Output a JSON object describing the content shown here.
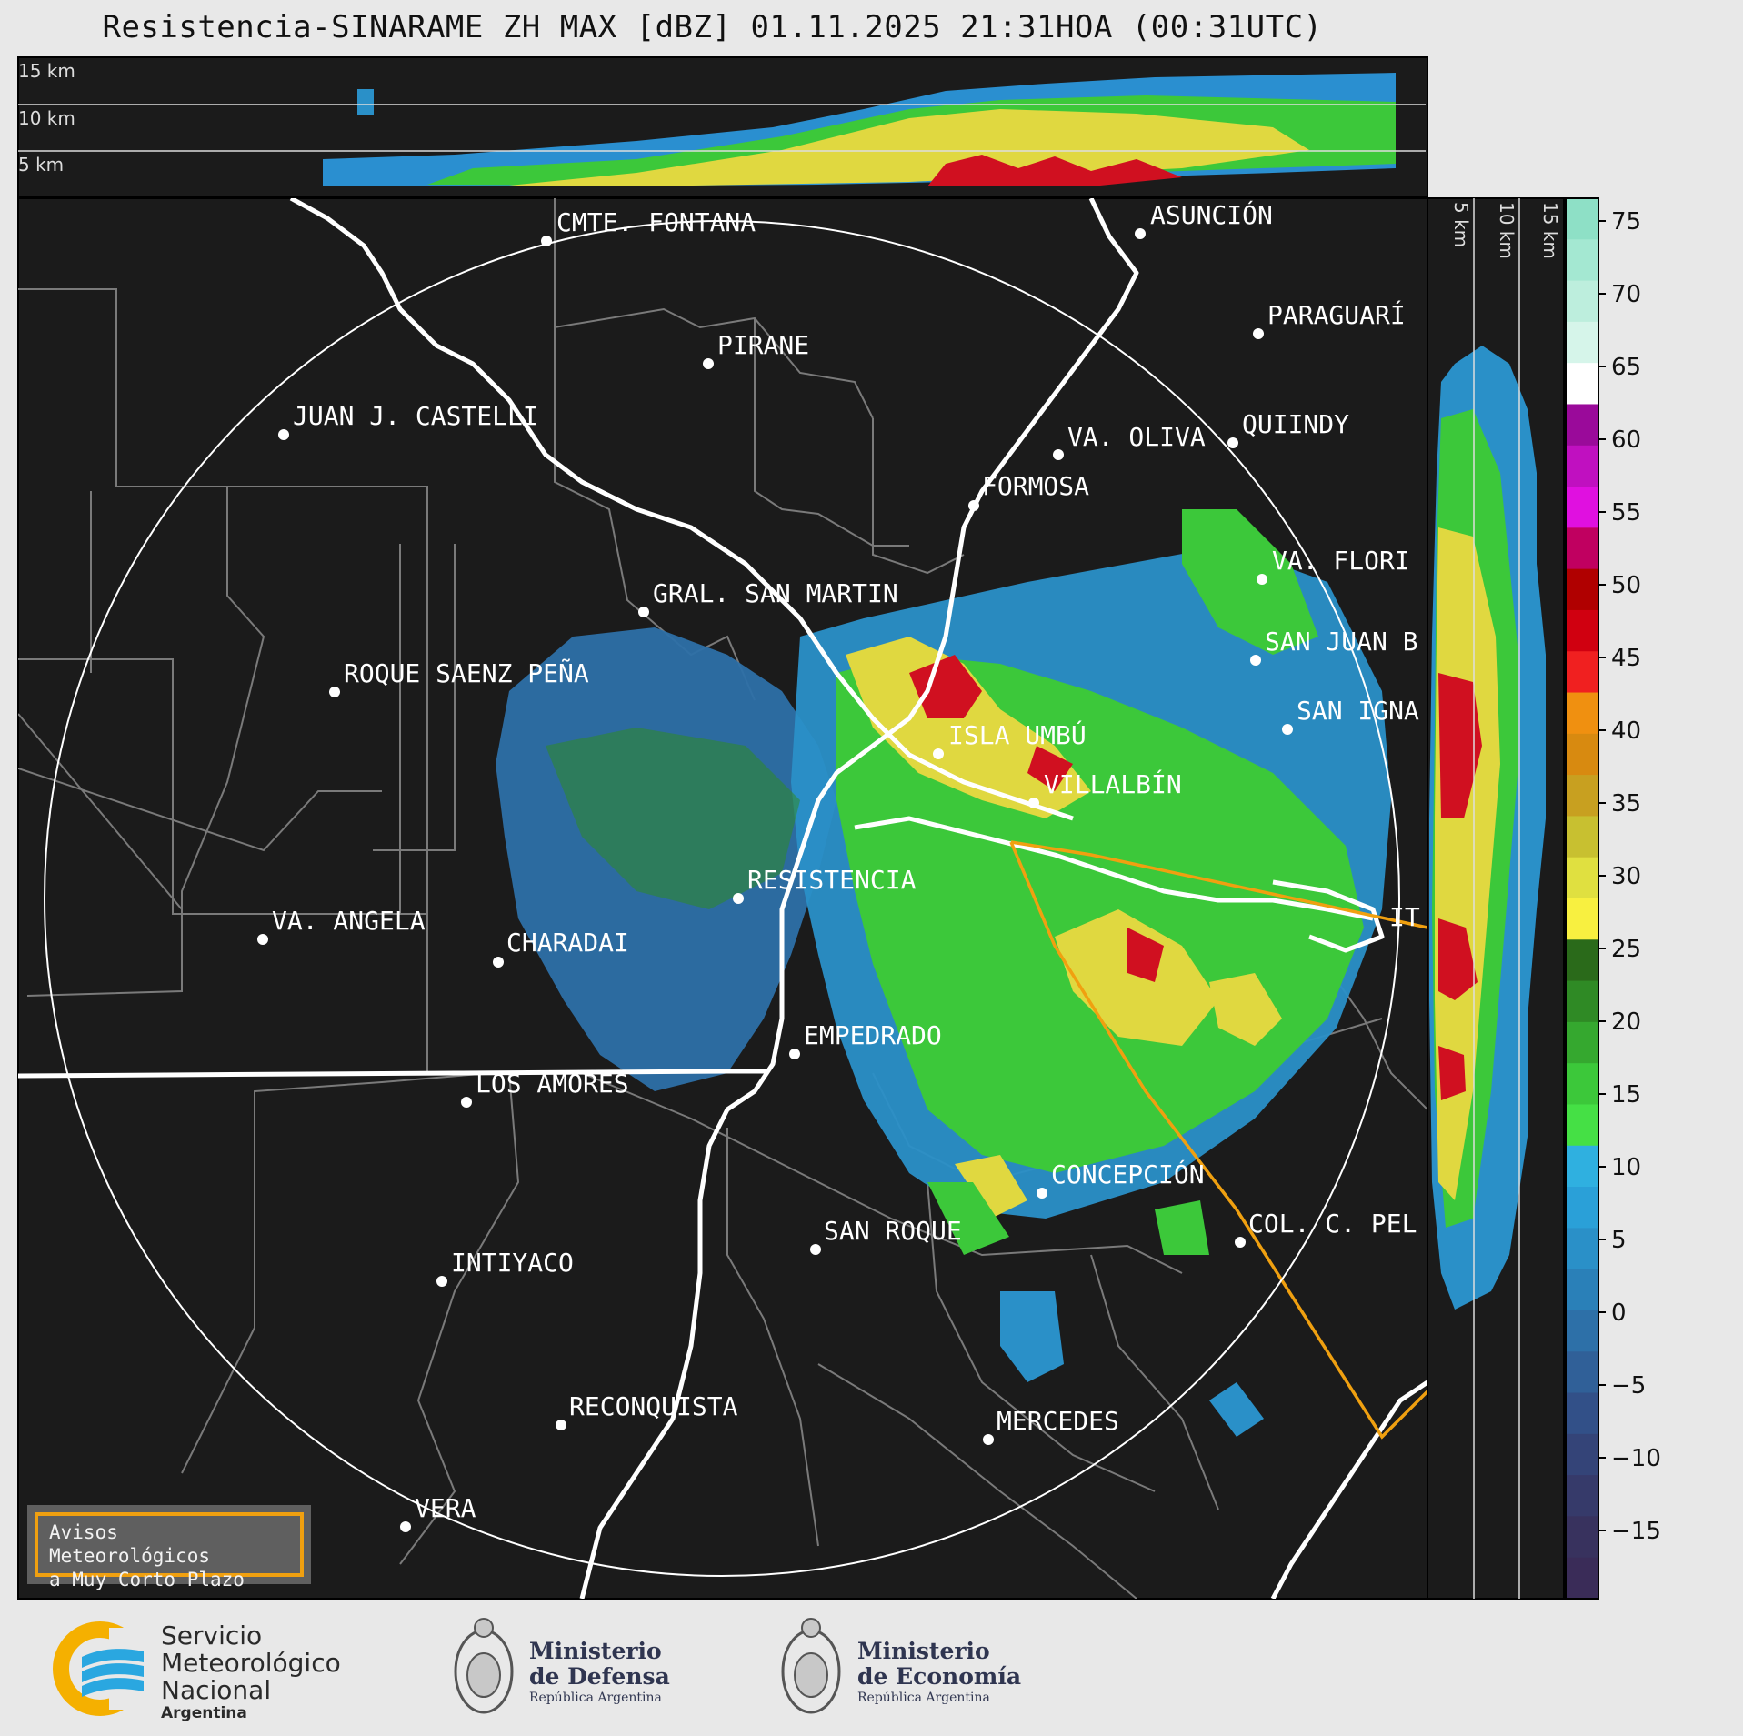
{
  "title": "Resistencia-SINARAME ZH MAX [dBZ] 01.11.2025 21:31HOA (00:31UTC)",
  "top_panel_labels": [
    "15 km",
    "10 km",
    "5 km"
  ],
  "side_panel_labels": [
    "5 km",
    "10 km",
    "15 km"
  ],
  "colorbar": {
    "ticks": [
      "75",
      "70",
      "65",
      "60",
      "55",
      "50",
      "45",
      "40",
      "35",
      "30",
      "25",
      "20",
      "15",
      "10",
      "5",
      "0",
      "−5",
      "−10",
      "−15"
    ],
    "colors": [
      "#8ee0c6",
      "#a4e8d2",
      "#bdeedd",
      "#d6f5ea",
      "#ffffff",
      "#9a0a9a",
      "#c010c0",
      "#e010e0",
      "#c00060",
      "#b00000",
      "#d00010",
      "#f02020",
      "#f09010",
      "#d88a10",
      "#c8a020",
      "#c8c030",
      "#e0e040",
      "#f8f040",
      "#2a6a1a",
      "#2f8a25",
      "#35a82f",
      "#3cc83a",
      "#45e045",
      "#2fb0e0",
      "#2aa0d8",
      "#2a90c8",
      "#2a80b8",
      "#2d70a8",
      "#306098",
      "#325088",
      "#344478",
      "#363a6a",
      "#38325e",
      "#3a2c58"
    ]
  },
  "cities": [
    {
      "name": "CMTE. FONTANA"
    },
    {
      "name": "ASUNCIÓN"
    },
    {
      "name": "PARAGUARÍ"
    },
    {
      "name": "PIRANE"
    },
    {
      "name": "JUAN J. CASTELLI"
    },
    {
      "name": "VA. OLIVA"
    },
    {
      "name": "QUIINDY"
    },
    {
      "name": "FORMOSA"
    },
    {
      "name": "VA. FLORI"
    },
    {
      "name": "GRAL. SAN MARTIN"
    },
    {
      "name": "SAN JUAN B"
    },
    {
      "name": "ROQUE SAENZ PEÑA"
    },
    {
      "name": "SAN IGNA"
    },
    {
      "name": "ISLA UMBÚ"
    },
    {
      "name": "VILLALBÍN"
    },
    {
      "name": "RESISTENCIA"
    },
    {
      "name": "IT"
    },
    {
      "name": "VA. ANGELA"
    },
    {
      "name": "CHARADAI"
    },
    {
      "name": "EMPEDRADO"
    },
    {
      "name": "LOS AMORES"
    },
    {
      "name": "CONCEPCIÓN"
    },
    {
      "name": "COL. C. PEL"
    },
    {
      "name": "SAN ROQUE"
    },
    {
      "name": "INTIYACO"
    },
    {
      "name": "RECONQUISTA"
    },
    {
      "name": "MERCEDES"
    },
    {
      "name": "VERA"
    }
  ],
  "aviso": {
    "line1": "Avisos Meteorológicos",
    "line2": "a Muy Corto Plazo"
  },
  "smn": {
    "line1": "Servicio",
    "line2": "Meteorológico",
    "line3": "Nacional",
    "line4": "Argentina"
  },
  "defensa": {
    "line1": "Ministerio",
    "line2": "de Defensa",
    "line3": "República Argentina"
  },
  "economia": {
    "line1": "Ministerio",
    "line2": "de Economía",
    "line3": "República Argentina"
  }
}
